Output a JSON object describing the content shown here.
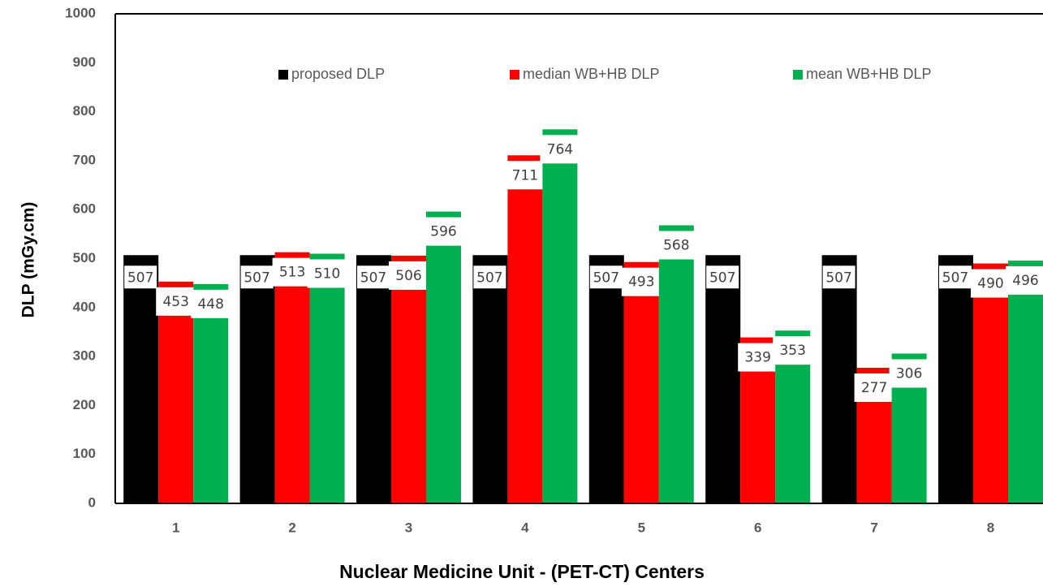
{
  "chart_data": {
    "type": "bar",
    "y_label": "DLP (mGy.cm)",
    "x_label": "Nuclear Medicine Unit - (PET-CT) Centers",
    "categories": [
      "1",
      "2",
      "3",
      "4",
      "5",
      "6",
      "7",
      "8"
    ],
    "series": [
      {
        "name": "proposed DLP",
        "color": "#000000",
        "values": [
          507,
          507,
          507,
          507,
          507,
          507,
          507,
          507
        ]
      },
      {
        "name": "median WB+HB DLP",
        "color": "#ff0000",
        "values": [
          453,
          513,
          506,
          711,
          493,
          339,
          277,
          490
        ]
      },
      {
        "name": "mean WB+HB DLP",
        "color": "#00b050",
        "values": [
          448,
          510,
          596,
          764,
          568,
          353,
          306,
          496
        ]
      }
    ],
    "ylim": [
      0,
      1000
    ],
    "yticks": [
      0,
      100,
      200,
      300,
      400,
      500,
      600,
      700,
      800,
      900,
      1000
    ],
    "legend": "top",
    "data_labels": true
  }
}
